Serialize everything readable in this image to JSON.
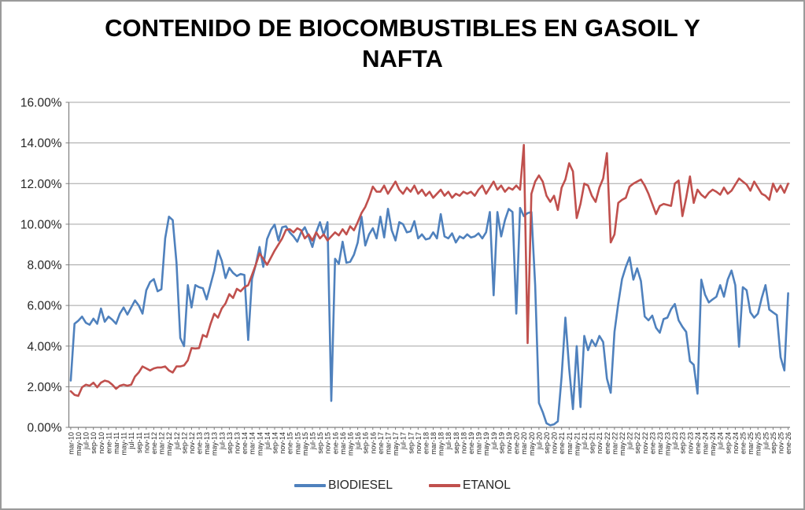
{
  "title": "CONTENIDO DE BIOCOMBUSTIBLES EN GASOIL Y NAFTA",
  "colors": {
    "biodiesel_line": "#4F81BD",
    "etanol_line": "#C0504D",
    "gridline": "#A3A3A3",
    "axis": "#7F7F7F",
    "background": "#FFFFFF",
    "frame_border": "#9A9A9A",
    "text": "#262626"
  },
  "chart_data": {
    "type": "line",
    "title": "CONTENIDO DE BIOCOMBUSTIBLES EN GASOIL Y NAFTA",
    "x_range": [
      "mar-10",
      "ene-26"
    ],
    "frequency": "monthly",
    "ylim": [
      0,
      16
    ],
    "y_format": "percent",
    "gridlines": true,
    "legend_position": "bottom",
    "y_tick_labels": [
      "0.00%",
      "2.00%",
      "4.00%",
      "6.00%",
      "8.00%",
      "10.00%",
      "12.00%",
      "14.00%",
      "16.00%"
    ],
    "x_tick_labels": [
      "mar-10",
      "may-10",
      "jul-10",
      "sep-10",
      "nov-10",
      "ene-11",
      "mar-11",
      "may-11",
      "jul-11",
      "sep-11",
      "nov-11",
      "ene-12",
      "mar-12",
      "may-12",
      "jul-12",
      "sep-12",
      "nov-12",
      "ene-13",
      "mar-13",
      "may-13",
      "jul-13",
      "sep-13",
      "nov-13",
      "ene-14",
      "mar-14",
      "may-14",
      "jul-14",
      "sep-14",
      "nov-14",
      "ene-15",
      "mar-15",
      "may-15",
      "jul-15",
      "sep-15",
      "nov-15",
      "ene-16",
      "mar-16",
      "may-16",
      "jul-16",
      "sep-16",
      "nov-16",
      "ene-17",
      "mar-17",
      "may-17",
      "jul-17",
      "sep-17",
      "nov-17",
      "ene-18",
      "mar-18",
      "may-18",
      "jul-18",
      "sep-18",
      "nov-18",
      "ene-19",
      "mar-19",
      "may-19",
      "jul-19",
      "sep-19",
      "nov-19",
      "ene-20",
      "mar-20",
      "may-20",
      "jul-20",
      "sep-20",
      "nov-20",
      "ene-21",
      "mar-21",
      "may-21",
      "jul-21",
      "sep-21",
      "nov-21",
      "ene-22",
      "mar-22",
      "may-22",
      "jul-22",
      "sep-22",
      "nov-22",
      "ene-23",
      "mar-23",
      "may-23",
      "jul-23",
      "sep-23",
      "nov-23",
      "ene-24",
      "mar-24",
      "may-24",
      "jul-24",
      "sep-24",
      "nov-24",
      "ene-25",
      "mar-25",
      "may-25",
      "jul-25",
      "sep-25",
      "nov-25",
      "ene-26"
    ],
    "series": [
      {
        "name": "BIODIESEL",
        "color": "#4F81BD",
        "values": [
          2.3,
          5.1,
          5.25,
          5.45,
          5.15,
          5.05,
          5.35,
          5.1,
          5.85,
          5.2,
          5.45,
          5.3,
          5.1,
          5.6,
          5.9,
          5.55,
          5.9,
          6.25,
          6.0,
          5.6,
          6.75,
          7.15,
          7.3,
          6.7,
          6.8,
          9.3,
          10.37,
          10.2,
          8.1,
          4.4,
          4.0,
          7.0,
          5.9,
          7.0,
          6.9,
          6.85,
          6.3,
          7.0,
          7.7,
          8.7,
          8.2,
          7.35,
          7.85,
          7.6,
          7.45,
          7.55,
          7.5,
          4.3,
          7.3,
          8.0,
          8.88,
          7.9,
          9.27,
          9.72,
          9.98,
          9.2,
          9.85,
          9.9,
          9.6,
          9.4,
          9.14,
          9.6,
          9.85,
          9.4,
          8.88,
          9.6,
          10.1,
          9.46,
          10.1,
          1.3,
          8.3,
          8.05,
          9.14,
          8.1,
          8.15,
          8.5,
          9.1,
          10.37,
          8.95,
          9.5,
          9.8,
          9.3,
          10.37,
          9.35,
          10.76,
          9.7,
          9.2,
          10.1,
          10.0,
          9.6,
          9.65,
          10.15,
          9.3,
          9.5,
          9.25,
          9.3,
          9.6,
          9.3,
          10.5,
          9.4,
          9.3,
          9.55,
          9.1,
          9.4,
          9.3,
          9.5,
          9.35,
          9.4,
          9.55,
          9.3,
          9.6,
          10.6,
          6.5,
          10.6,
          9.4,
          10.2,
          10.75,
          10.6,
          5.6,
          10.8,
          10.4,
          10.55,
          10.6,
          7.0,
          1.2,
          0.75,
          0.2,
          0.1,
          0.15,
          0.3,
          2.5,
          5.4,
          2.9,
          0.9,
          4.0,
          1.0,
          4.5,
          3.8,
          4.3,
          4.0,
          4.5,
          4.2,
          2.4,
          1.7,
          4.7,
          6.1,
          7.3,
          7.9,
          8.37,
          7.27,
          7.83,
          7.2,
          5.46,
          5.27,
          5.5,
          4.9,
          4.66,
          5.33,
          5.4,
          5.82,
          6.07,
          5.27,
          4.95,
          4.7,
          3.26,
          3.08,
          1.66,
          7.27,
          6.53,
          6.15,
          6.3,
          6.43,
          7.0,
          6.43,
          7.27,
          7.72,
          7.0,
          3.97,
          6.9,
          6.75,
          5.66,
          5.4,
          5.6,
          6.37,
          7.0,
          5.8,
          5.66,
          5.53,
          3.45,
          2.8,
          6.6
        ]
      },
      {
        "name": "ETANOL",
        "color": "#C0504D",
        "values": [
          1.78,
          1.6,
          1.55,
          1.97,
          2.1,
          2.05,
          2.2,
          1.97,
          2.2,
          2.3,
          2.25,
          2.1,
          1.9,
          2.05,
          2.1,
          2.05,
          2.1,
          2.5,
          2.7,
          3.0,
          2.9,
          2.8,
          2.9,
          2.95,
          2.95,
          3.0,
          2.8,
          2.7,
          3.0,
          3.0,
          3.05,
          3.3,
          3.9,
          3.88,
          3.9,
          4.55,
          4.45,
          5.07,
          5.59,
          5.4,
          5.85,
          6.1,
          6.56,
          6.37,
          6.82,
          6.7,
          6.9,
          7.0,
          7.5,
          8.0,
          8.56,
          8.3,
          8.0,
          8.35,
          8.7,
          9.0,
          9.3,
          9.72,
          9.75,
          9.6,
          9.8,
          9.7,
          9.3,
          9.5,
          9.2,
          9.6,
          9.3,
          9.5,
          9.2,
          9.4,
          9.6,
          9.45,
          9.75,
          9.5,
          9.9,
          9.7,
          10.1,
          10.55,
          10.85,
          11.3,
          11.85,
          11.6,
          11.6,
          11.9,
          11.5,
          11.8,
          12.1,
          11.7,
          11.5,
          11.8,
          11.6,
          11.9,
          11.5,
          11.7,
          11.4,
          11.6,
          11.3,
          11.5,
          11.7,
          11.4,
          11.6,
          11.3,
          11.5,
          11.4,
          11.6,
          11.5,
          11.6,
          11.4,
          11.7,
          11.9,
          11.5,
          11.8,
          12.1,
          11.7,
          11.9,
          11.6,
          11.8,
          11.7,
          11.9,
          11.7,
          13.9,
          4.15,
          11.5,
          12.1,
          12.4,
          12.1,
          11.4,
          11.1,
          11.4,
          10.7,
          11.8,
          12.2,
          13.0,
          12.6,
          10.3,
          11.0,
          12.0,
          11.9,
          11.4,
          11.1,
          11.8,
          12.25,
          13.5,
          9.1,
          9.5,
          11.05,
          11.2,
          11.3,
          11.85,
          12.0,
          12.1,
          12.2,
          11.9,
          11.5,
          11.0,
          10.5,
          10.9,
          11.0,
          10.95,
          10.9,
          12.0,
          12.15,
          10.4,
          11.3,
          12.35,
          11.05,
          11.7,
          11.45,
          11.3,
          11.55,
          11.7,
          11.6,
          11.45,
          11.8,
          11.5,
          11.65,
          11.95,
          12.25,
          12.1,
          11.95,
          11.65,
          12.1,
          11.8,
          11.5,
          11.4,
          11.2,
          12.0,
          11.6,
          11.9,
          11.55,
          12.0
        ]
      }
    ]
  }
}
